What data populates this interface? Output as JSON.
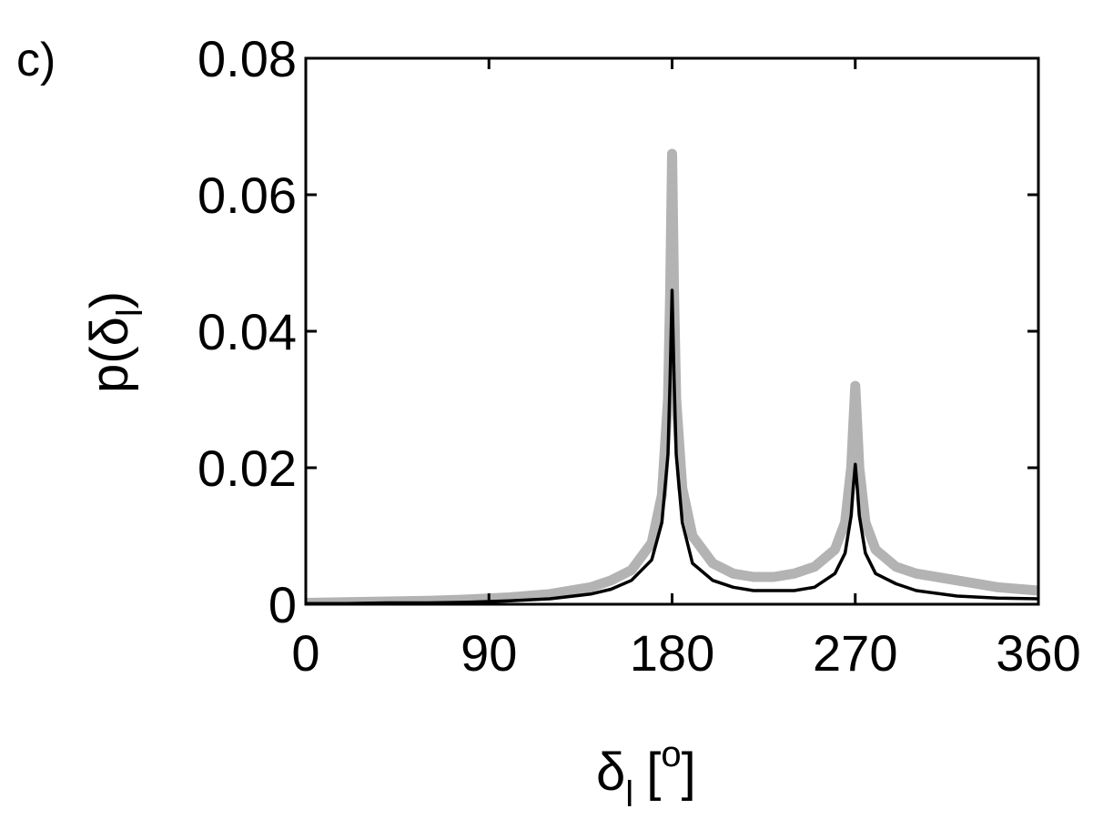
{
  "panel_label": "c)",
  "chart_data": {
    "type": "line",
    "title": "",
    "xlabel": {
      "main": "δ",
      "sub": "l",
      "unit_open": "[",
      "unit_sup": "o",
      "unit_close": "]"
    },
    "ylabel": {
      "main": "p(δ",
      "sub": "l",
      "close": ")"
    },
    "xlim": [
      0,
      360
    ],
    "ylim": [
      0,
      0.08
    ],
    "xticks": [
      0,
      90,
      180,
      270,
      360
    ],
    "xtick_labels": [
      "0",
      "90",
      "180",
      "270",
      "360"
    ],
    "yticks": [
      0,
      0.02,
      0.04,
      0.06,
      0.08
    ],
    "ytick_labels": [
      "0",
      "0.02",
      "0.04",
      "0.06",
      "0.08"
    ],
    "grid": false,
    "colors": {
      "gray_series": "#b3b3b3",
      "black_series": "#000000",
      "axes": "#000000"
    },
    "series": [
      {
        "color": "#b3b3b3",
        "style": "thick-noisy",
        "x": [
          0,
          20,
          40,
          60,
          80,
          100,
          120,
          140,
          150,
          160,
          170,
          175,
          178,
          179,
          180,
          181,
          182,
          185,
          190,
          200,
          210,
          220,
          230,
          240,
          250,
          260,
          265,
          268,
          269,
          270,
          271,
          272,
          275,
          280,
          290,
          300,
          320,
          340,
          360
        ],
        "y": [
          0.0002,
          0.0003,
          0.0004,
          0.0005,
          0.0007,
          0.001,
          0.0015,
          0.0025,
          0.0035,
          0.005,
          0.009,
          0.016,
          0.03,
          0.045,
          0.066,
          0.045,
          0.03,
          0.017,
          0.01,
          0.006,
          0.0045,
          0.004,
          0.004,
          0.0045,
          0.0055,
          0.008,
          0.012,
          0.02,
          0.026,
          0.032,
          0.026,
          0.02,
          0.012,
          0.008,
          0.0055,
          0.0045,
          0.0035,
          0.0025,
          0.002
        ]
      },
      {
        "color": "#000000",
        "style": "solid",
        "x": [
          0,
          20,
          40,
          60,
          80,
          100,
          120,
          140,
          150,
          160,
          170,
          175,
          178,
          179,
          180,
          181,
          182,
          185,
          190,
          200,
          210,
          220,
          230,
          240,
          250,
          260,
          265,
          268,
          269,
          270,
          271,
          272,
          275,
          280,
          290,
          300,
          320,
          340,
          360
        ],
        "y": [
          0.0001,
          0.0001,
          0.0002,
          0.0002,
          0.0003,
          0.0005,
          0.0008,
          0.0015,
          0.0022,
          0.0035,
          0.0065,
          0.012,
          0.022,
          0.033,
          0.046,
          0.033,
          0.022,
          0.012,
          0.006,
          0.0035,
          0.0025,
          0.002,
          0.002,
          0.002,
          0.0025,
          0.0045,
          0.0075,
          0.013,
          0.017,
          0.0205,
          0.017,
          0.013,
          0.0075,
          0.0045,
          0.003,
          0.002,
          0.0012,
          0.0009,
          0.0008
        ]
      }
    ]
  }
}
